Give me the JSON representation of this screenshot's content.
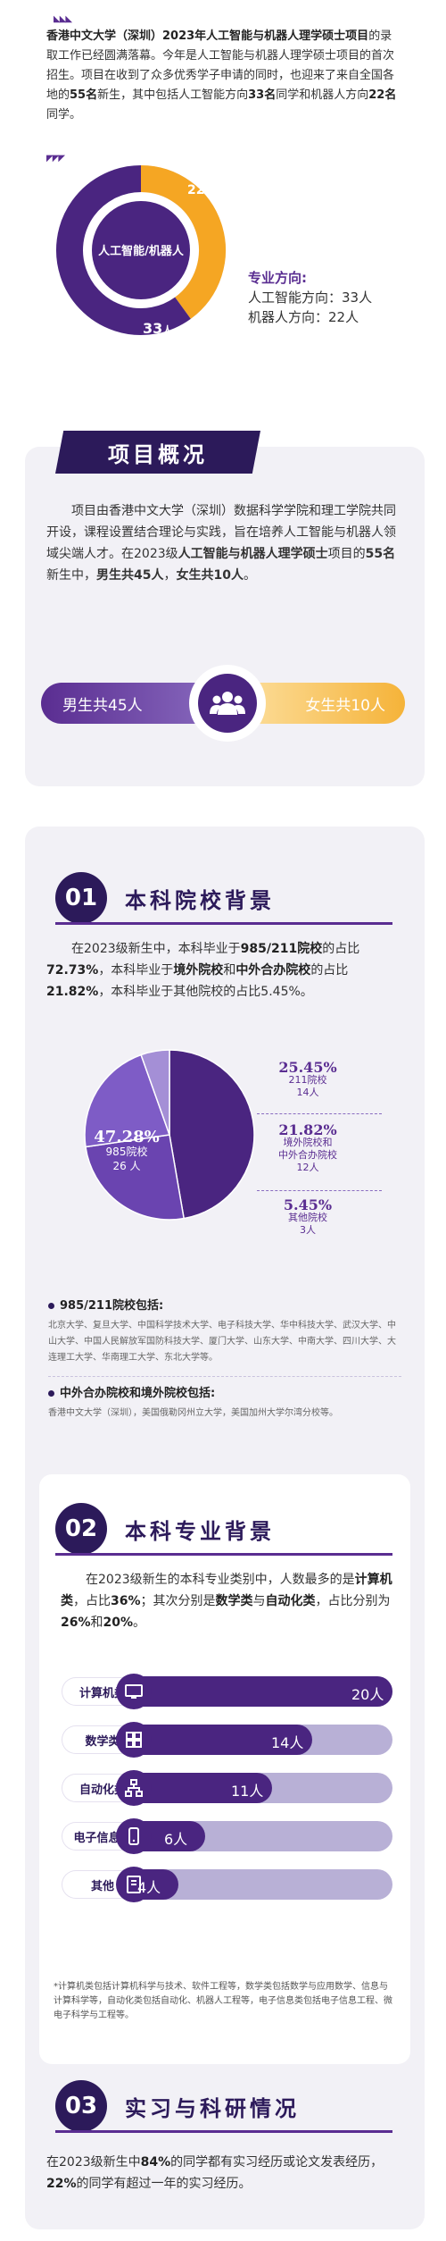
{
  "intro": {
    "p1_bold": "香港中文大学（深圳）2023年人工智能与机器人理学硕士项目",
    "p1_rest": "的录取工作已经圆满落幕。今年是人工智能与机器人理学硕士项目的首次招生。项目在收到了众多优秀学子申请的同时，也迎来了来自全国各地的",
    "p1_num": "55名",
    "p1_mid": "新生，其中包括人工智能方向",
    "p1_ai": "33名",
    "p1_and": "同学和机器人方向",
    "p1_rob": "22名",
    "p1_end": "同学。"
  },
  "donut": {
    "center_label": "人工智能/机器人",
    "ai_value": "33",
    "robot_value": "22",
    "unit": "人",
    "legend_title": "专业方向:",
    "legend_ai": "人工智能方向：33人",
    "legend_robot": "机器人方向：22人",
    "color_ai": "#4a2580",
    "color_robot": "#f5a623"
  },
  "overview": {
    "title": "项目概况",
    "text_1": "项目由香港中文大学（深圳）数据科学学院和理工学院共同开设，课程设置结合理论与实践，旨在培养人工智能与机器人领域尖端人才。在2023级",
    "text_bold_1": "人工智能与机器人理学硕士",
    "text_2": "项目的",
    "text_bold_2": "55名",
    "text_3": "新生中，",
    "text_bold_3": "男生共45人",
    "text_4": "，",
    "text_bold_4": "女生共10人",
    "text_5": "。",
    "male": "男生共45人",
    "female": "女生共10人",
    "icon": "group-icon"
  },
  "sec1": {
    "num": "01",
    "title": "本科院校背景",
    "p_a": "在2023级新生中，本科毕业于",
    "p_b": "985/211院校",
    "p_c": "的占比",
    "p_d": "72.73%",
    "p_e": "，本科毕业于",
    "p_f": "境外院校",
    "p_g": "和",
    "p_h": "中外合办院校",
    "p_i": "的占比",
    "p_j": "21.82%",
    "p_k": "，本科毕业于其他院校的占比5.45%。",
    "list1_title": "985/211院校包括:",
    "list1": "北京大学、复旦大学、中国科学技术大学、电子科技大学、华中科技大学、武汉大学、中山大学、中国人民解放军国防科技大学、厦门大学、山东大学、中南大学、四川大学、大连理工大学、华南理工大学、东北大学等。",
    "list2_title": "中外合办院校和境外院校包括:",
    "list2": "香港中文大学（深圳），美国俄勒冈州立大学，美国加州大学尔湾分校等。"
  },
  "chart_data": {
    "type": "pie",
    "slices": [
      {
        "pct": "47.28%",
        "label": "985院校",
        "count": "26 人",
        "value": 47.28,
        "color": "#4a2580"
      },
      {
        "pct": "25.45%",
        "label": "211院校",
        "count": "14人",
        "value": 25.45,
        "color": "#6a44b0"
      },
      {
        "pct": "21.82%",
        "label": "境外院校和\n中外合办院校",
        "count": "12人",
        "value": 21.82,
        "color": "#7e5cc6"
      },
      {
        "pct": "5.45%",
        "label": "其他院校",
        "count": "3人",
        "value": 5.45,
        "color": "#a48fd6"
      }
    ]
  },
  "sec2": {
    "num": "02",
    "title": "本科专业背景",
    "p_a": "在2023级新生的本科专业类别中，人数最多的是",
    "p_b": "计算机类",
    "p_c": "，占比",
    "p_d": "36%",
    "p_e": "；其次分别是",
    "p_f": "数学类",
    "p_g": "与",
    "p_h": "自动化类",
    "p_i": "，占比分别为",
    "p_j": "26%",
    "p_k": "和",
    "p_l": "20%",
    "p_m": "。",
    "bars": [
      {
        "label": "计算机类",
        "value": "20人",
        "n": 20,
        "icon": "monitor-icon"
      },
      {
        "label": "数学类",
        "value": "14人",
        "n": 14,
        "icon": "grid-icon"
      },
      {
        "label": "自动化类",
        "value": "11人",
        "n": 11,
        "icon": "network-icon"
      },
      {
        "label": "电子信息类",
        "value": "6人",
        "n": 6,
        "icon": "phone-icon"
      },
      {
        "label": "其他",
        "value": "4人",
        "n": 4,
        "icon": "book-icon"
      }
    ],
    "footnote": "*计算机类包括计算机科学与技术、软件工程等，数学类包括数学与应用数学、信息与计算科学等，自动化类包括自动化、机器人工程等，电子信息类包括电子信息工程、微电子科学与工程等。"
  },
  "sec3": {
    "num": "03",
    "title": "实习与科研情况",
    "p_a": "在2023级新生中",
    "p_b": "84%",
    "p_c": "的同学都有实习经历或论文发表经历，",
    "p_d": "22%",
    "p_e": "的同学有超过一年的实习经历。"
  }
}
